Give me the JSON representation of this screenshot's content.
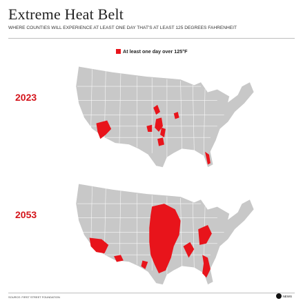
{
  "title": "Extreme Heat Belt",
  "subtitle": "WHERE COUNTIES WILL EXPERIENCE AT LEAST ONE DAY THAT'S AT LEAST 125 DEGREES FAHRENHEIT",
  "legend": {
    "label": "At least one day over 125°F",
    "color": "#e8141b"
  },
  "maps": [
    {
      "year": "2023"
    },
    {
      "year": "2053"
    }
  ],
  "colors": {
    "land": "#c8c8c8",
    "highlight": "#e8141b",
    "year": "#d4141b"
  },
  "source": "SOURCE: FIRST STREET FOUNDATION",
  "logo": {
    "mark": "abc-logo-icon",
    "text": "NEWS"
  }
}
